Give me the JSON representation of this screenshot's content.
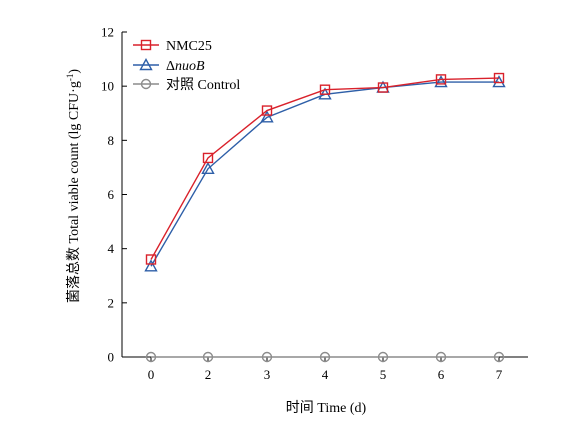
{
  "chart_data": {
    "type": "line",
    "title": "",
    "xlabel": "时间 Time (d)",
    "ylabel": "菌落总数 Total viable count (lg CFU·g",
    "ylabel_sup": "-1",
    "ylabel_close": ")",
    "categories": [
      "0",
      "2",
      "3",
      "4",
      "5",
      "6",
      "7"
    ],
    "ylim": [
      0,
      12
    ],
    "yticks": [
      0,
      2,
      4,
      6,
      8,
      10,
      12
    ],
    "grid": false,
    "legend_position": "top-left",
    "series": [
      {
        "name": "NMC25",
        "name_parts": [
          {
            "text": "NMC25",
            "italic": false
          }
        ],
        "marker": "square",
        "color": "#d9212b",
        "values": [
          3.6,
          7.35,
          9.1,
          9.87,
          9.95,
          10.25,
          10.3
        ]
      },
      {
        "name": "ΔnuoB",
        "name_parts": [
          {
            "text": "Δ",
            "italic": false
          },
          {
            "text": "nuoB",
            "italic": true
          }
        ],
        "marker": "triangle",
        "color": "#2e5fa8",
        "values": [
          3.35,
          6.95,
          8.85,
          9.7,
          9.95,
          10.15,
          10.15
        ]
      },
      {
        "name": "对照 Control",
        "name_parts": [
          {
            "text": "对照 Control",
            "italic": false
          }
        ],
        "marker": "circle",
        "color": "#8c8c8c",
        "values": [
          0,
          0,
          0,
          0,
          0,
          0,
          0
        ]
      }
    ]
  }
}
